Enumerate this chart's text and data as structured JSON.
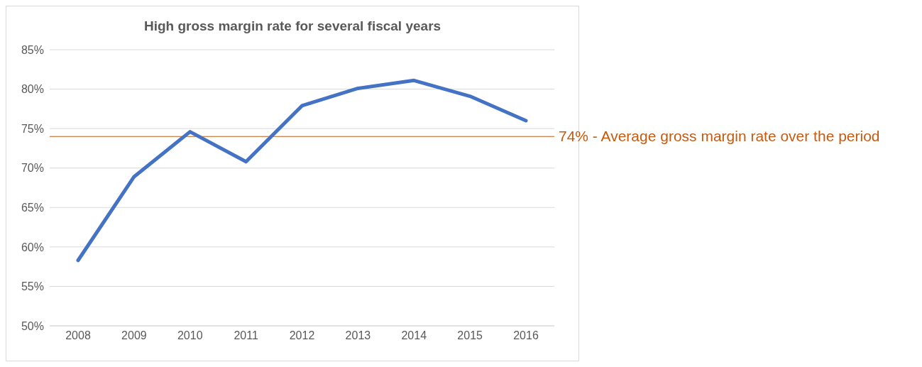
{
  "chart_data": {
    "type": "line",
    "title": "High gross margin rate for several fiscal years",
    "categories": [
      "2008",
      "2009",
      "2010",
      "2011",
      "2012",
      "2013",
      "2014",
      "2015",
      "2016"
    ],
    "values": [
      58.3,
      68.9,
      74.6,
      70.8,
      77.9,
      80.1,
      81.1,
      79.1,
      76.0
    ],
    "color": "#4472c4",
    "marker": "none",
    "ylim": [
      50,
      85
    ],
    "yticks": [
      {
        "value": 50,
        "label": "50%"
      },
      {
        "value": 55,
        "label": "55%"
      },
      {
        "value": 60,
        "label": "60%"
      },
      {
        "value": 65,
        "label": "65%"
      },
      {
        "value": 70,
        "label": "70%"
      },
      {
        "value": 75,
        "label": "75%"
      },
      {
        "value": 80,
        "label": "80%"
      },
      {
        "value": 85,
        "label": "85%"
      }
    ],
    "grid": "y",
    "ref_lines": [
      {
        "axis": "y",
        "value": 74,
        "label": "74% - Average gross margin rate over the period",
        "color": "#c55a11"
      }
    ]
  }
}
